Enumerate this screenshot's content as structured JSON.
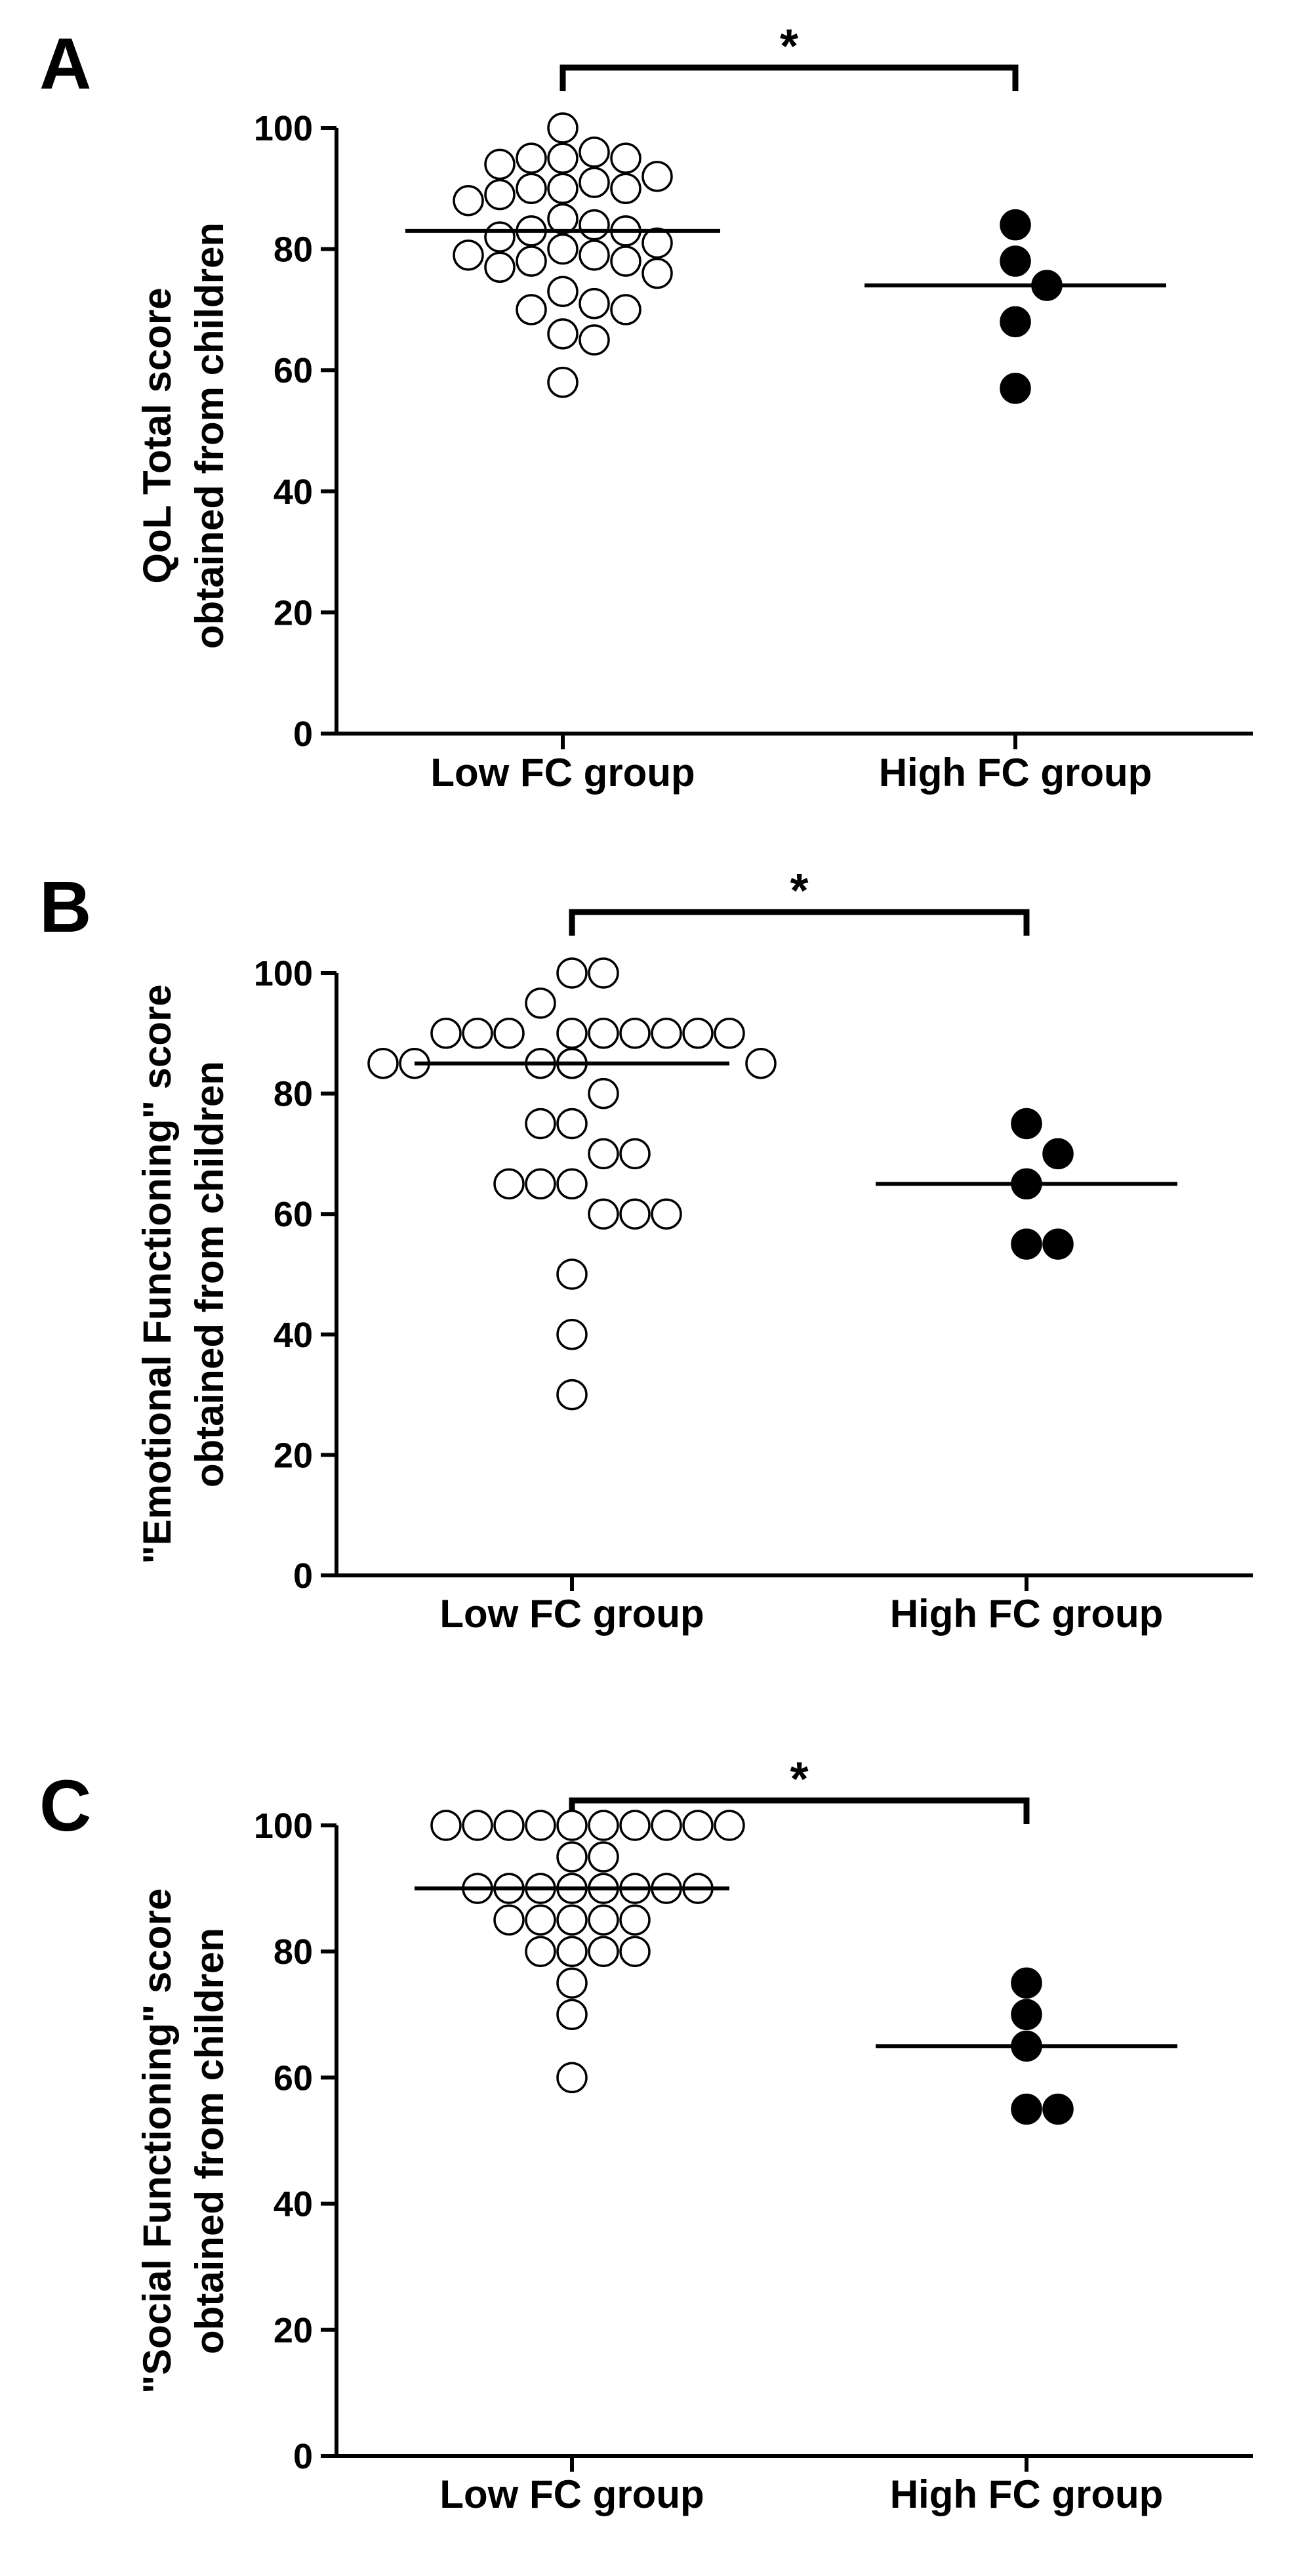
{
  "chart_data": [
    {
      "type": "scatter",
      "panel": "A",
      "ylabel_line1": "QoL Total score",
      "ylabel_line2": "obtained from children",
      "categories": [
        "Low FC group",
        "High FC group"
      ],
      "ylim": [
        0,
        100
      ],
      "yticks": [
        0,
        20,
        40,
        60,
        80,
        100
      ],
      "significance": "*",
      "series": [
        {
          "name": "Low FC group",
          "style": "open",
          "median": 83,
          "values": [
            100,
            96,
            95,
            95,
            95,
            94,
            92,
            91,
            90,
            90,
            90,
            89,
            88,
            85,
            84,
            83,
            83,
            82,
            81,
            80,
            79,
            79,
            78,
            78,
            77,
            76,
            73,
            71,
            70,
            70,
            66,
            65,
            58
          ]
        },
        {
          "name": "High FC group",
          "style": "filled",
          "median": 74,
          "values": [
            84,
            78,
            74,
            68,
            57
          ]
        }
      ]
    },
    {
      "type": "scatter",
      "panel": "B",
      "ylabel_line1": "\"Emotional Functioning\" score",
      "ylabel_line2": "obtained from children",
      "categories": [
        "Low FC group",
        "High FC group"
      ],
      "ylim": [
        0,
        100
      ],
      "yticks": [
        0,
        20,
        40,
        60,
        80,
        100
      ],
      "significance": "*",
      "series": [
        {
          "name": "Low FC group",
          "style": "open",
          "median": 85,
          "values": [
            100,
            100,
            95,
            90,
            90,
            90,
            90,
            90,
            90,
            90,
            90,
            90,
            85,
            85,
            85,
            85,
            85,
            85,
            85,
            80,
            75,
            75,
            70,
            70,
            65,
            65,
            65,
            60,
            60,
            60,
            50,
            40,
            30
          ]
        },
        {
          "name": "High FC group",
          "style": "filled",
          "median": 65,
          "values": [
            75,
            70,
            65,
            55,
            55
          ]
        }
      ]
    },
    {
      "type": "scatter",
      "panel": "C",
      "ylabel_line1": "\"Social Functioning\" score",
      "ylabel_line2": "obtained from children",
      "categories": [
        "Low FC group",
        "High FC group"
      ],
      "ylim": [
        0,
        100
      ],
      "yticks": [
        0,
        20,
        40,
        60,
        80,
        100
      ],
      "significance": "*",
      "series": [
        {
          "name": "Low FC group",
          "style": "open",
          "median": 90,
          "values": [
            100,
            100,
            100,
            100,
            100,
            100,
            100,
            100,
            100,
            100,
            95,
            95,
            90,
            90,
            90,
            90,
            90,
            90,
            90,
            90,
            85,
            85,
            85,
            85,
            85,
            80,
            80,
            80,
            80,
            75,
            70,
            60
          ]
        },
        {
          "name": "High FC group",
          "style": "filled",
          "median": 65,
          "values": [
            75,
            70,
            65,
            55,
            55
          ]
        }
      ]
    }
  ]
}
